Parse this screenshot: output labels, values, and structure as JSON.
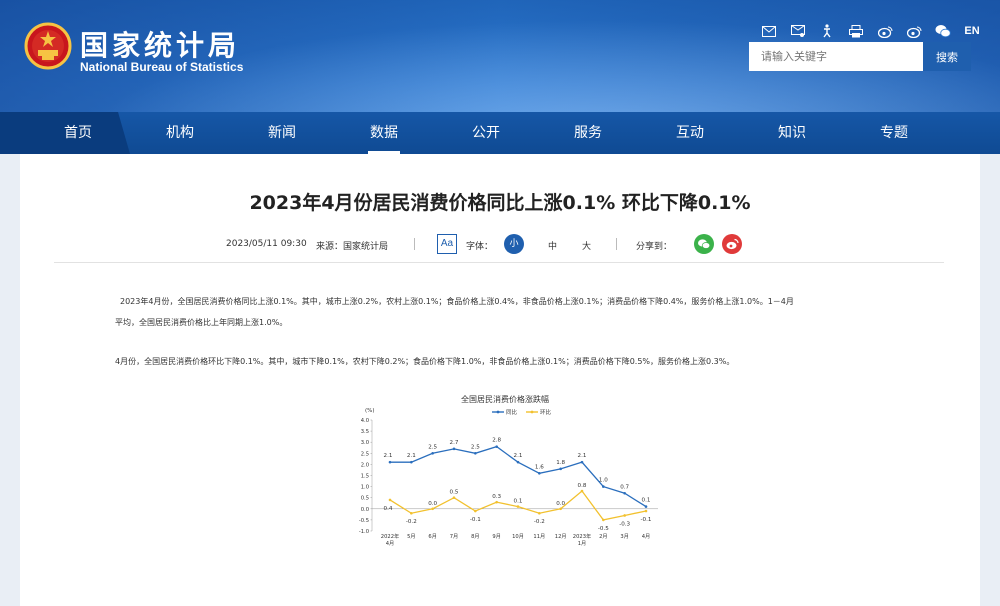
{
  "header": {
    "title_cn": "国家统计局",
    "title_en": "National Bureau of Statistics",
    "lang_label": "EN",
    "icons": [
      "mail-icon",
      "message-icon",
      "accessibility-icon",
      "printer-icon",
      "weibo-icon",
      "weibo-icon",
      "wechat-icon"
    ],
    "search_placeholder": "请输入关键字",
    "search_button": "搜索"
  },
  "nav": {
    "items": [
      "首页",
      "机构",
      "新闻",
      "数据",
      "公开",
      "服务",
      "互动",
      "知识",
      "专题"
    ],
    "active": "数据"
  },
  "article": {
    "title": "2023年4月份居民消费价格同比上涨0.1% 环比下降0.1%",
    "date": "2023/05/11 09:30",
    "source": "来源：国家统计局",
    "font_label": "字体：",
    "font_small": "小",
    "font_medium": "中",
    "font_large": "大",
    "share_label": "分享到：",
    "aa_label": "Aa",
    "para1_line1": "2023年4月份，全国居民消费价格同比上涨0.1%。其中，城市上涨0.2%，农村上涨0.1%；食品价格上涨0.4%，非食品价格上涨0.1%；消费品价格下降0.4%，服务价格上涨1.0%。1－4月",
    "para1_line2": "平均，全国居民消费价格比上年同期上涨1.0%。",
    "para2": "4月份，全国居民消费价格环比下降0.1%。其中，城市下降0.1%，农村下降0.2%；食品价格下降1.0%，非食品价格上涨0.1%；消费品价格下降0.5%，服务价格上涨0.3%。"
  },
  "chart_data": {
    "type": "line",
    "title": "全国居民消费价格涨跌幅",
    "ylabel": "(%)",
    "ylim": [
      -1.0,
      4.0
    ],
    "yticks": [
      "4.0",
      "3.5",
      "3.0",
      "2.5",
      "2.0",
      "1.5",
      "1.0",
      "0.5",
      "0.0",
      "-0.5",
      "-1.0"
    ],
    "categories": [
      "2022年4月",
      "5月",
      "6月",
      "7月",
      "8月",
      "9月",
      "10月",
      "11月",
      "12月",
      "2023年1月",
      "2月",
      "3月",
      "4月"
    ],
    "category_lines": [
      [
        "2022年",
        "4月"
      ],
      [
        "5月"
      ],
      [
        "6月"
      ],
      [
        "7月"
      ],
      [
        "8月"
      ],
      [
        "9月"
      ],
      [
        "10月"
      ],
      [
        "11月"
      ],
      [
        "12月"
      ],
      [
        "2023年",
        "1月"
      ],
      [
        "2月"
      ],
      [
        "3月"
      ],
      [
        "4月"
      ]
    ],
    "legend": "top-center",
    "series": [
      {
        "name": "同比",
        "color": "#2a6ebd",
        "values": [
          2.1,
          2.1,
          2.5,
          2.7,
          2.5,
          2.8,
          2.1,
          1.6,
          1.8,
          2.1,
          1.0,
          0.7,
          0.1
        ],
        "labels": [
          "2.1",
          "2.1",
          "2.5",
          "2.7",
          "2.5",
          "2.8",
          "2.1",
          "1.6",
          "1.8",
          "2.1",
          "1.0",
          "0.7",
          "0.1"
        ]
      },
      {
        "name": "环比",
        "color": "#f2c12e",
        "values": [
          0.4,
          -0.2,
          0.0,
          0.5,
          -0.1,
          0.3,
          0.1,
          -0.2,
          0.0,
          0.8,
          -0.5,
          -0.3,
          -0.1
        ],
        "labels": [
          "0.4",
          "-0.2",
          "0.0",
          "0.5",
          "-0.1",
          "0.3",
          "0.1",
          "-0.2",
          "0.0",
          "0.8",
          "-0.5",
          "-0.3",
          "-0.1"
        ]
      }
    ]
  }
}
